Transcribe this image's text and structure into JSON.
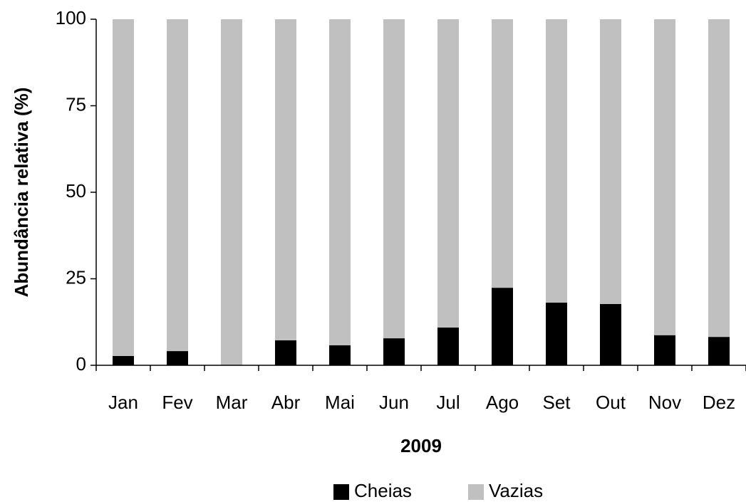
{
  "chart_data": {
    "type": "bar",
    "stacked": true,
    "x_label": "2009",
    "y_label": "Abundância relativa (%)",
    "categories": [
      "Jan",
      "Fev",
      "Mar",
      "Abr",
      "Mai",
      "Jun",
      "Jul",
      "Ago",
      "Set",
      "Out",
      "Nov",
      "Dez"
    ],
    "series": [
      {
        "name": "Cheias",
        "color": "#000000",
        "values": [
          2.7,
          4.1,
          0,
          7.2,
          5.8,
          7.8,
          10.9,
          22.4,
          18.1,
          17.7,
          8.7,
          8.2
        ]
      },
      {
        "name": "Vazias",
        "color": "#c0c0c0",
        "values": [
          97.3,
          95.9,
          100,
          92.8,
          94.2,
          92.2,
          89.1,
          77.6,
          81.9,
          82.3,
          91.3,
          91.8
        ]
      }
    ],
    "ylim": [
      0,
      100
    ],
    "yticks": [
      0,
      25,
      50,
      75,
      100
    ],
    "grid": false,
    "legend": "bottom"
  }
}
